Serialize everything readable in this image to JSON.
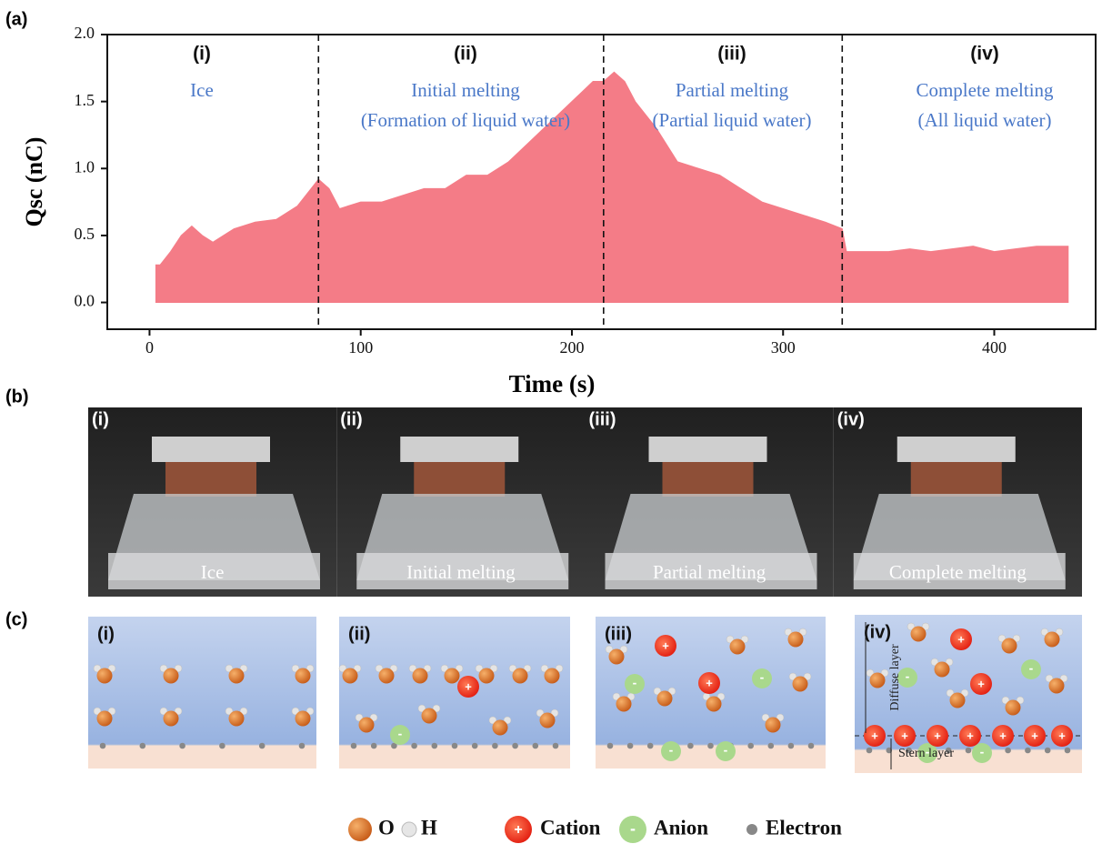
{
  "chart_data": {
    "type": "area",
    "panel_label": "(a)",
    "xlabel": "Time (s)",
    "ylabel": "Qsc (nC)",
    "x": [
      3,
      5,
      10,
      15,
      20,
      25,
      30,
      40,
      50,
      60,
      70,
      80,
      85,
      90,
      100,
      110,
      120,
      130,
      140,
      150,
      160,
      170,
      180,
      190,
      200,
      210,
      215,
      220,
      225,
      230,
      240,
      250,
      260,
      270,
      280,
      290,
      300,
      310,
      320,
      328,
      330,
      340,
      350,
      360,
      370,
      380,
      390,
      400,
      410,
      420,
      430,
      435
    ],
    "values": [
      0.28,
      0.28,
      0.38,
      0.5,
      0.57,
      0.5,
      0.45,
      0.55,
      0.6,
      0.62,
      0.72,
      0.92,
      0.85,
      0.7,
      0.75,
      0.75,
      0.8,
      0.85,
      0.85,
      0.95,
      0.95,
      1.05,
      1.2,
      1.35,
      1.5,
      1.65,
      1.65,
      1.72,
      1.65,
      1.5,
      1.3,
      1.05,
      1.0,
      0.95,
      0.85,
      0.75,
      0.7,
      0.65,
      0.6,
      0.55,
      0.38,
      0.38,
      0.38,
      0.4,
      0.38,
      0.4,
      0.42,
      0.38,
      0.4,
      0.42,
      0.42,
      0.42
    ],
    "color": "#f47c87",
    "xlim": [
      -20,
      448
    ],
    "ylim": [
      -0.2,
      2.0
    ],
    "xticks": [
      0,
      100,
      200,
      300,
      400
    ],
    "yticks": [
      {
        "value": 0,
        "label": "0.0"
      },
      {
        "value": 0.5,
        "label": "0.5"
      },
      {
        "value": 1,
        "label": "1.0"
      },
      {
        "value": 1.5,
        "label": "1.5"
      },
      {
        "value": 2,
        "label": "2.0"
      }
    ],
    "dividers": [
      80,
      215,
      328
    ],
    "regions": [
      {
        "numeral": "(i)",
        "lines": [
          "Ice"
        ]
      },
      {
        "numeral": "(ii)",
        "lines": [
          "Initial melting",
          "(Formation of liquid water)"
        ]
      },
      {
        "numeral": "(iii)",
        "lines": [
          "Partial melting",
          "(Partial liquid water)"
        ]
      },
      {
        "numeral": "(iv)",
        "lines": [
          "Complete melting",
          "(All liquid water)"
        ]
      }
    ]
  },
  "photos": {
    "panel_label": "(b)",
    "items": [
      {
        "numeral": "(i)",
        "caption": "Ice"
      },
      {
        "numeral": "(ii)",
        "caption": "Initial melting"
      },
      {
        "numeral": "(iii)",
        "caption": "Partial melting"
      },
      {
        "numeral": "(iv)",
        "caption": "Complete melting"
      }
    ]
  },
  "diagrams": {
    "panel_label": "(c)",
    "numerals": [
      "(i)",
      "(ii)",
      "(iii)",
      "(iv)"
    ],
    "diffuse_layer": "Diffuse layer",
    "stern_layer": "Stern layer"
  },
  "legend": {
    "items": [
      {
        "label": "O"
      },
      {
        "label": "H"
      },
      {
        "label": "Cation",
        "symbol": "+"
      },
      {
        "label": "Anion",
        "symbol": "-"
      },
      {
        "label": "Electron"
      }
    ]
  }
}
